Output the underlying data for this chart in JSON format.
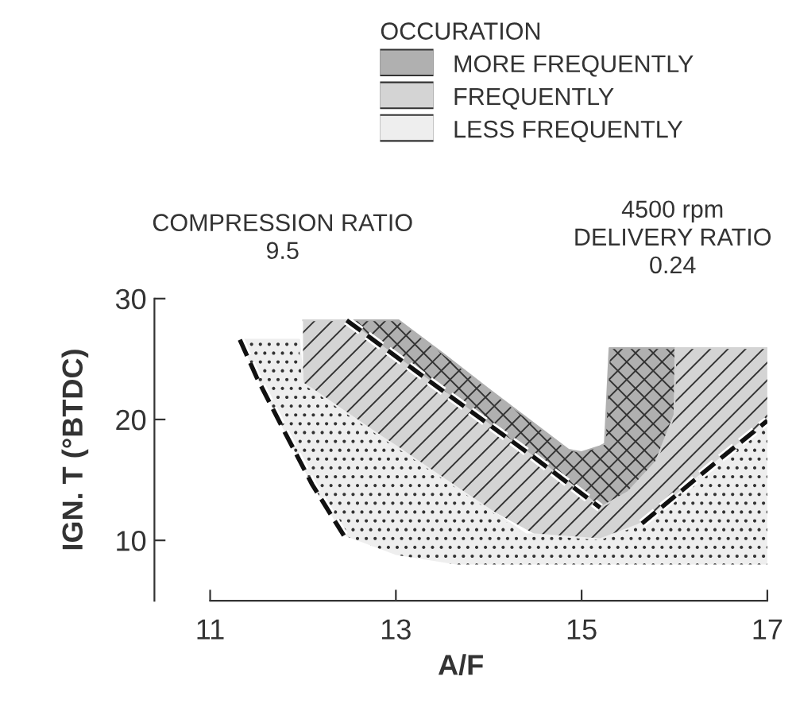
{
  "chart_data": {
    "type": "line",
    "xlabel": "A/F",
    "ylabel": "IGN. T (°BTDC)",
    "legend_title": "OCCURATION",
    "annotations": [
      "COMPRESSION RATIO\n9.5",
      "4500 rpm\nDELIVERY RATIO\n0.24"
    ],
    "xlim": [
      10.4,
      17
    ],
    "ylim": [
      5,
      30
    ],
    "xticks": [
      11,
      13,
      15,
      17
    ],
    "yticks": [
      10,
      20,
      30
    ],
    "grid": false,
    "legend": "top right",
    "series": [
      {
        "name": "MORE FREQUENTLY",
        "color": "#b0b0b0",
        "x": [
          12.47,
          13.03,
          13.5,
          14.0,
          14.5,
          14.86,
          15.0,
          15.2,
          15.25,
          15.3,
          15.5,
          15.8,
          16.0
        ],
        "lower": [
          28.2,
          25.0,
          22.4,
          19.6,
          16.8,
          14.7,
          14.0,
          12.7,
          12.9,
          13.1,
          14.0,
          16.5,
          20.4
        ],
        "upper": [
          28.2,
          28.2,
          25.5,
          22.5,
          19.6,
          17.5,
          17.3,
          17.8,
          18.0,
          25.9,
          25.9,
          25.9,
          25.9
        ],
        "values": [
          28.2,
          28.2,
          25.5,
          22.5,
          19.6,
          17.5,
          17.3,
          17.8,
          18.0,
          25.9,
          25.9,
          25.9,
          25.9
        ]
      },
      {
        "name": "FREQUENTLY",
        "color": "#d4d4d4",
        "x": [
          12.0,
          12.47,
          13.0,
          13.5,
          14.0,
          14.5,
          15.0,
          15.2,
          15.5,
          15.8,
          16.0,
          16.01,
          16.5,
          17.0
        ],
        "lower": [
          23.0,
          20.6,
          17.8,
          15.2,
          12.6,
          10.5,
          10.2,
          10.1,
          10.8,
          12.3,
          13.6,
          13.7,
          16.8,
          19.9
        ],
        "upper": [
          28.2,
          28.2,
          25.2,
          22.4,
          19.6,
          16.8,
          14.0,
          12.7,
          14.0,
          16.5,
          20.4,
          25.9,
          25.9,
          25.9
        ],
        "values": [
          28.2,
          28.2,
          25.2,
          22.4,
          19.6,
          16.8,
          14.0,
          12.7,
          14.0,
          16.5,
          20.4,
          25.9,
          25.9,
          25.9
        ]
      },
      {
        "name": "LESS FREQUENTLY",
        "color": "#eeeeee",
        "x": [
          11.32,
          11.5,
          11.8,
          11.96,
          12.0,
          12.1,
          12.44,
          12.86,
          13.0,
          13.65,
          14.0,
          14.4,
          14.5,
          15.2,
          15.65,
          16.0,
          16.5,
          17.0
        ],
        "lower": [
          26.6,
          23.5,
          19.0,
          16.6,
          16.0,
          14.6,
          10.4,
          9.2,
          8.8,
          8.0,
          8.0,
          8.0,
          8.0,
          8.0,
          8.0,
          8.0,
          8.0,
          8.0
        ],
        "upper": [
          26.6,
          26.6,
          26.6,
          26.6,
          23.0,
          22.5,
          20.7,
          18.5,
          17.8,
          14.4,
          12.6,
          10.5,
          10.5,
          10.1,
          11.4,
          13.6,
          16.8,
          19.9
        ],
        "values": [
          26.6,
          26.6,
          26.6,
          26.6,
          23.0,
          22.5,
          20.7,
          18.5,
          17.8,
          14.4,
          12.6,
          10.5,
          10.5,
          10.1,
          11.4,
          13.6,
          16.8,
          19.9
        ]
      },
      {
        "type": "line",
        "line_style": "dashed",
        "color": "#111111",
        "x": [
          11.32,
          11.5,
          11.8,
          12.1,
          12.44
        ],
        "values": [
          26.6,
          23.5,
          19.0,
          14.6,
          10.4
        ]
      },
      {
        "type": "line",
        "line_style": "dashed",
        "color": "#111111",
        "x": [
          12.47,
          13.5,
          14.5,
          15.2
        ],
        "values": [
          28.2,
          22.4,
          16.8,
          12.7
        ]
      },
      {
        "type": "line",
        "line_style": "dashed",
        "color": "#111111",
        "x": [
          15.65,
          16.5,
          17.0
        ],
        "values": [
          11.4,
          16.8,
          19.9
        ]
      }
    ]
  }
}
